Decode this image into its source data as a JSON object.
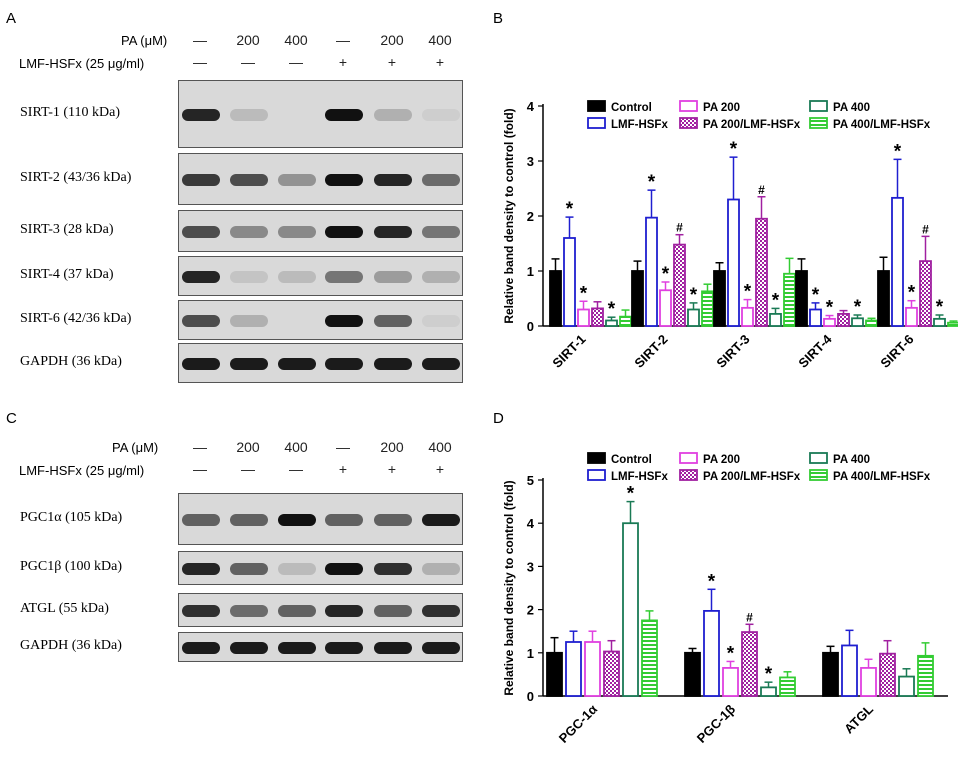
{
  "panels": {
    "A": {
      "label": "A",
      "header": {
        "pa": "PA (μM)",
        "lmf": "LMF-HSFx (25 μg/ml)",
        "pa_values": [
          "—",
          "200",
          "400",
          "—",
          "200",
          "400"
        ],
        "lmf_values": [
          "—",
          "—",
          "—",
          "+",
          "+",
          "+"
        ]
      },
      "blots": [
        {
          "label": "SIRT-1 (110 kDa)",
          "intensity": [
            0.9,
            0.15,
            0,
            1.0,
            0.2,
            0.05
          ]
        },
        {
          "label": "SIRT-2 (43/36 kDa)",
          "intensity": [
            0.8,
            0.7,
            0.35,
            1.0,
            0.9,
            0.55
          ]
        },
        {
          "label": "SIRT-3 (28 kDa)",
          "intensity": [
            0.7,
            0.4,
            0.4,
            1.0,
            0.9,
            0.5
          ]
        },
        {
          "label": "SIRT-4 (37 kDa)",
          "intensity": [
            0.9,
            0.1,
            0.15,
            0.5,
            0.3,
            0.2
          ]
        },
        {
          "label": "SIRT-6 (42/36 kDa)",
          "intensity": [
            0.7,
            0.2,
            0,
            1.0,
            0.6,
            0.05
          ]
        },
        {
          "label": "GAPDH (36 kDa)",
          "intensity": [
            0.95,
            0.95,
            0.95,
            0.95,
            0.95,
            0.95
          ]
        }
      ]
    },
    "B": {
      "label": "B"
    },
    "C": {
      "label": "C",
      "header": {
        "pa": "PA (μM)",
        "lmf": "LMF-HSFx (25 μg/ml)",
        "pa_values": [
          "—",
          "200",
          "400",
          "—",
          "200",
          "400"
        ],
        "lmf_values": [
          "—",
          "—",
          "—",
          "+",
          "+",
          "+"
        ]
      },
      "blots": [
        {
          "label": "PGC1α (105 kDa)",
          "intensity": [
            0.6,
            0.6,
            1.0,
            0.6,
            0.6,
            0.95
          ]
        },
        {
          "label": "PGC1β (100 kDa)",
          "intensity": [
            0.9,
            0.6,
            0.15,
            1.0,
            0.85,
            0.2
          ]
        },
        {
          "label": "ATGL (55 kDa)",
          "intensity": [
            0.85,
            0.55,
            0.6,
            0.9,
            0.6,
            0.85
          ]
        },
        {
          "label": "GAPDH (36 kDa)",
          "intensity": [
            0.95,
            0.95,
            0.95,
            0.95,
            0.95,
            0.95
          ]
        }
      ]
    },
    "D": {
      "label": "D"
    }
  },
  "chart_data": [
    {
      "type": "bar",
      "panel": "B",
      "ylabel": "Relative band density to control (fold)",
      "ylim": [
        0,
        4
      ],
      "yticks": [
        "0",
        "1",
        "2",
        "3",
        "4"
      ],
      "categories": [
        "SIRT-1",
        "SIRT-2",
        "SIRT-3",
        "SIRT-4",
        "SIRT-6"
      ],
      "series": [
        {
          "name": "Control",
          "color": "#000000",
          "fill": "solid",
          "values": [
            1.0,
            1.0,
            1.0,
            1.0,
            1.0
          ],
          "errors": [
            0.22,
            0.18,
            0.15,
            0.22,
            0.25
          ]
        },
        {
          "name": "LMF-HSFx",
          "color": "#1f1fd0",
          "fill": "open",
          "values": [
            1.6,
            1.97,
            2.3,
            0.3,
            2.33
          ],
          "errors": [
            0.38,
            0.5,
            0.77,
            0.12,
            0.7
          ]
        },
        {
          "name": "PA 200",
          "color": "#e040e0",
          "fill": "open",
          "values": [
            0.3,
            0.65,
            0.33,
            0.13,
            0.33
          ],
          "errors": [
            0.15,
            0.15,
            0.15,
            0.06,
            0.13
          ]
        },
        {
          "name": "PA 200/LMF-HSFx",
          "color": "#a020a0",
          "fill": "check",
          "values": [
            0.32,
            1.48,
            1.95,
            0.22,
            1.18
          ],
          "errors": [
            0.12,
            0.18,
            0.4,
            0.06,
            0.45
          ]
        },
        {
          "name": "PA 400",
          "color": "#1a7a55",
          "fill": "open",
          "values": [
            0.1,
            0.3,
            0.22,
            0.14,
            0.13
          ],
          "errors": [
            0.06,
            0.12,
            0.1,
            0.06,
            0.07
          ]
        },
        {
          "name": "PA 400/LMF-HSFx",
          "color": "#33cc33",
          "fill": "hstripe",
          "values": [
            0.17,
            0.63,
            0.95,
            0.1,
            0.06
          ],
          "errors": [
            0.12,
            0.13,
            0.28,
            0.04,
            0.03
          ]
        }
      ],
      "annotations": [
        {
          "category": "SIRT-1",
          "series": "LMF-HSFx",
          "text": "*"
        },
        {
          "category": "SIRT-1",
          "series": "PA 200",
          "text": "*"
        },
        {
          "category": "SIRT-1",
          "series": "PA 400",
          "text": "*"
        },
        {
          "category": "SIRT-2",
          "series": "LMF-HSFx",
          "text": "*"
        },
        {
          "category": "SIRT-2",
          "series": "PA 200",
          "text": "*"
        },
        {
          "category": "SIRT-2",
          "series": "PA 200/LMF-HSFx",
          "text": "#"
        },
        {
          "category": "SIRT-2",
          "series": "PA 400",
          "text": "*"
        },
        {
          "category": "SIRT-3",
          "series": "LMF-HSFx",
          "text": "*"
        },
        {
          "category": "SIRT-3",
          "series": "PA 200",
          "text": "*"
        },
        {
          "category": "SIRT-3",
          "series": "PA 200/LMF-HSFx",
          "text": "#"
        },
        {
          "category": "SIRT-3",
          "series": "PA 400",
          "text": "*"
        },
        {
          "category": "SIRT-4",
          "series": "LMF-HSFx",
          "text": "*"
        },
        {
          "category": "SIRT-4",
          "series": "PA 200",
          "text": "*"
        },
        {
          "category": "SIRT-4",
          "series": "PA 400",
          "text": "*"
        },
        {
          "category": "SIRT-6",
          "series": "LMF-HSFx",
          "text": "*"
        },
        {
          "category": "SIRT-6",
          "series": "PA 200",
          "text": "*"
        },
        {
          "category": "SIRT-6",
          "series": "PA 200/LMF-HSFx",
          "text": "#"
        },
        {
          "category": "SIRT-6",
          "series": "PA 400",
          "text": "*"
        }
      ]
    },
    {
      "type": "bar",
      "panel": "D",
      "ylabel": "Relative band density to control (fold)",
      "ylim": [
        0,
        5
      ],
      "yticks": [
        "0",
        "1",
        "2",
        "3",
        "4",
        "5"
      ],
      "categories": [
        "PGC-1α",
        "PGC-1β",
        "ATGL"
      ],
      "series": [
        {
          "name": "Control",
          "color": "#000000",
          "fill": "solid",
          "values": [
            1.0,
            1.0,
            1.0
          ],
          "errors": [
            0.35,
            0.1,
            0.15
          ]
        },
        {
          "name": "LMF-HSFx",
          "color": "#1f1fd0",
          "fill": "open",
          "values": [
            1.25,
            1.97,
            1.17
          ],
          "errors": [
            0.25,
            0.5,
            0.35
          ]
        },
        {
          "name": "PA 200",
          "color": "#e040e0",
          "fill": "open",
          "values": [
            1.25,
            0.65,
            0.65
          ],
          "errors": [
            0.25,
            0.15,
            0.2
          ]
        },
        {
          "name": "PA 200/LMF-HSFx",
          "color": "#a020a0",
          "fill": "check",
          "values": [
            1.03,
            1.48,
            0.98
          ],
          "errors": [
            0.25,
            0.18,
            0.3
          ]
        },
        {
          "name": "PA 400",
          "color": "#1a7a55",
          "fill": "open",
          "values": [
            4.0,
            0.2,
            0.45
          ],
          "errors": [
            0.5,
            0.12,
            0.18
          ]
        },
        {
          "name": "PA 400/LMF-HSFx",
          "color": "#33cc33",
          "fill": "hstripe",
          "values": [
            1.75,
            0.43,
            0.93
          ],
          "errors": [
            0.22,
            0.13,
            0.3
          ]
        }
      ],
      "annotations": [
        {
          "category": "PGC-1α",
          "series": "PA 400",
          "text": "*"
        },
        {
          "category": "PGC-1β",
          "series": "LMF-HSFx",
          "text": "*"
        },
        {
          "category": "PGC-1β",
          "series": "PA 200",
          "text": "*"
        },
        {
          "category": "PGC-1β",
          "series": "PA 200/LMF-HSFx",
          "text": "#"
        },
        {
          "category": "PGC-1β",
          "series": "PA 400",
          "text": "*"
        }
      ]
    }
  ]
}
